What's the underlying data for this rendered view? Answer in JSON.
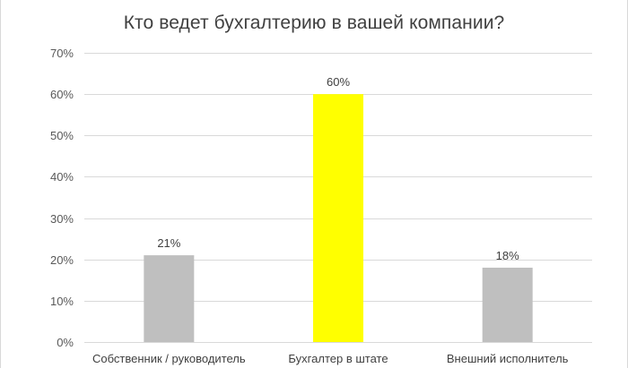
{
  "chart_data": {
    "type": "bar",
    "title": "Кто ведет бухгалтерию в вашей компании?",
    "xlabel": "",
    "ylabel": "",
    "categories": [
      "Собственник / руководитель",
      "Бухгалтер в штате",
      "Внешний исполнитель"
    ],
    "values": [
      21,
      60,
      18
    ],
    "data_labels": [
      "21%",
      "60%",
      "18%"
    ],
    "bar_colors": [
      "#bfbfbf",
      "#ffff00",
      "#bfbfbf"
    ],
    "ylim": [
      0,
      70
    ],
    "yticks": [
      0,
      10,
      20,
      30,
      40,
      50,
      60,
      70
    ],
    "ytick_labels": [
      "0%",
      "10%",
      "20%",
      "30%",
      "40%",
      "50%",
      "60%",
      "70%"
    ],
    "grid": true,
    "gridline_color": "#d9d9d9",
    "legend": "none"
  }
}
